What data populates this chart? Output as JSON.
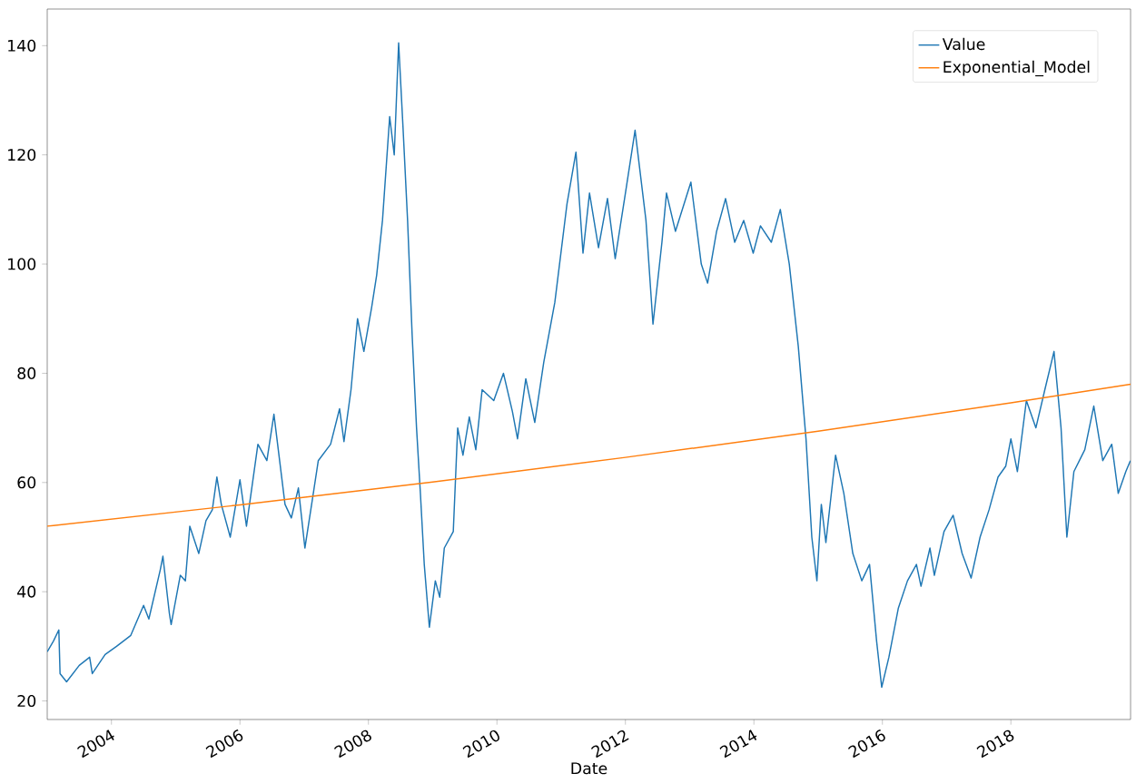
{
  "chart_data": {
    "type": "line",
    "xlabel": "Date",
    "legend": "top right",
    "grid": false,
    "marker": "none",
    "line_style": "solid",
    "xlim": [
      "2003-01-01",
      "2019-11-12"
    ],
    "ylim": [
      16.6,
      146.7
    ],
    "xticks": [
      "2004",
      "2006",
      "2008",
      "2010",
      "2012",
      "2014",
      "2016",
      "2018"
    ],
    "yticks": [
      20,
      40,
      60,
      80,
      100,
      120,
      140
    ],
    "series": [
      {
        "name": "Value",
        "color": "#1f77b4",
        "x": [
          "2003-01-01",
          "2003-02-06",
          "2003-03-08",
          "2003-03-15",
          "2003-04-21",
          "2003-07-02",
          "2003-08-30",
          "2003-09-14",
          "2003-11-26",
          "2004-01-30",
          "2004-04-20",
          "2004-07-02",
          "2004-08-01",
          "2004-10-05",
          "2004-10-20",
          "2004-11-26",
          "2004-12-06",
          "2005-01-27",
          "2005-02-25",
          "2005-03-22",
          "2005-05-12",
          "2005-06-22",
          "2005-07-28",
          "2005-08-23",
          "2005-09-17",
          "2005-11-07",
          "2006-01-01",
          "2006-02-07",
          "2006-04-13",
          "2006-06-03",
          "2006-07-13",
          "2006-09-14",
          "2006-10-20",
          "2006-11-29",
          "2007-01-05",
          "2007-02-17",
          "2007-03-22",
          "2007-05-31",
          "2007-07-21",
          "2007-08-15",
          "2007-09-24",
          "2007-10-31",
          "2007-12-06",
          "2008-01-19",
          "2008-02-17",
          "2008-03-21",
          "2008-05-01",
          "2008-05-27",
          "2008-06-21",
          "2008-07-16",
          "2008-08-11",
          "2008-09-06",
          "2008-10-01",
          "2008-10-23",
          "2008-11-14",
          "2008-12-13",
          "2009-01-16",
          "2009-02-10",
          "2009-03-08",
          "2009-04-28",
          "2009-05-23",
          "2009-06-22",
          "2009-07-28",
          "2009-09-03",
          "2009-10-09",
          "2009-12-14",
          "2010-02-07",
          "2010-03-30",
          "2010-04-28",
          "2010-06-14",
          "2010-08-04",
          "2010-09-24",
          "2010-11-26",
          "2011-02-03",
          "2011-03-26",
          "2011-05-05",
          "2011-06-11",
          "2011-08-01",
          "2011-09-21",
          "2011-11-04",
          "2012-01-01",
          "2012-02-25",
          "2012-04-27",
          "2012-06-06",
          "2012-07-27",
          "2012-08-22",
          "2012-10-12",
          "2013-01-08",
          "2013-03-08",
          "2013-04-13",
          "2013-06-03",
          "2013-07-24",
          "2013-09-14",
          "2013-11-04",
          "2013-12-28",
          "2014-02-07",
          "2014-04-10",
          "2014-05-31",
          "2014-07-21",
          "2014-09-10",
          "2014-10-24",
          "2014-11-26",
          "2014-12-25",
          "2015-01-19",
          "2015-02-14",
          "2015-04-10",
          "2015-05-27",
          "2015-07-17",
          "2015-09-06",
          "2015-10-20",
          "2015-11-29",
          "2015-12-28",
          "2016-02-07",
          "2016-04-01",
          "2016-05-23",
          "2016-07-13",
          "2016-08-08",
          "2016-09-28",
          "2016-10-23",
          "2016-12-17",
          "2017-02-07",
          "2017-03-30",
          "2017-05-20",
          "2017-07-10",
          "2017-08-30",
          "2017-10-20",
          "2017-12-03",
          "2018-01-01",
          "2018-02-07",
          "2018-03-30",
          "2018-05-23",
          "2018-07-13",
          "2018-09-03",
          "2018-10-13",
          "2018-11-15",
          "2018-12-25",
          "2019-02-25",
          "2019-04-17",
          "2019-06-07",
          "2019-07-28",
          "2019-09-03",
          "2019-10-16",
          "2019-11-11"
        ],
        "values": [
          29,
          31,
          33,
          25,
          23.5,
          26.5,
          28,
          25,
          28.5,
          30,
          32,
          37.5,
          35,
          44,
          46.5,
          36,
          34,
          43,
          42,
          52,
          47,
          53,
          55,
          61,
          56,
          50,
          60.5,
          52,
          67,
          64,
          72.5,
          56,
          53.5,
          59,
          48,
          57,
          64,
          67,
          73.5,
          67.5,
          77,
          90,
          84,
          92,
          98,
          108,
          127,
          120,
          140.5,
          125,
          108,
          87,
          70,
          58,
          45,
          33.5,
          42,
          39,
          48,
          51,
          70,
          65,
          72,
          66,
          77,
          75,
          80,
          73,
          68,
          79,
          71,
          82,
          93,
          111,
          120.5,
          102,
          113,
          103,
          112,
          101,
          113,
          124.5,
          108,
          89,
          104,
          113,
          106,
          115,
          100,
          96.5,
          106,
          112,
          104,
          108,
          102,
          107,
          104,
          110,
          100,
          85,
          68,
          50,
          42,
          56,
          49,
          65,
          58,
          47,
          42,
          45,
          31,
          22.5,
          28,
          37,
          42,
          45,
          41,
          48,
          43,
          51,
          54,
          47,
          42.5,
          50,
          55,
          61,
          63,
          68,
          62,
          75,
          70,
          77,
          84,
          70,
          50,
          62,
          66,
          74,
          64,
          67,
          58,
          62,
          64
        ]
      },
      {
        "name": "Exponential_Model",
        "color": "#ff7f0e",
        "x": [
          "2003-01-01",
          "2006-01-01",
          "2009-01-01",
          "2012-01-01",
          "2015-01-01",
          "2018-01-01",
          "2019-11-12"
        ],
        "values": [
          52.0,
          55.9,
          60.1,
          64.6,
          69.4,
          74.6,
          78.0
        ]
      }
    ]
  }
}
